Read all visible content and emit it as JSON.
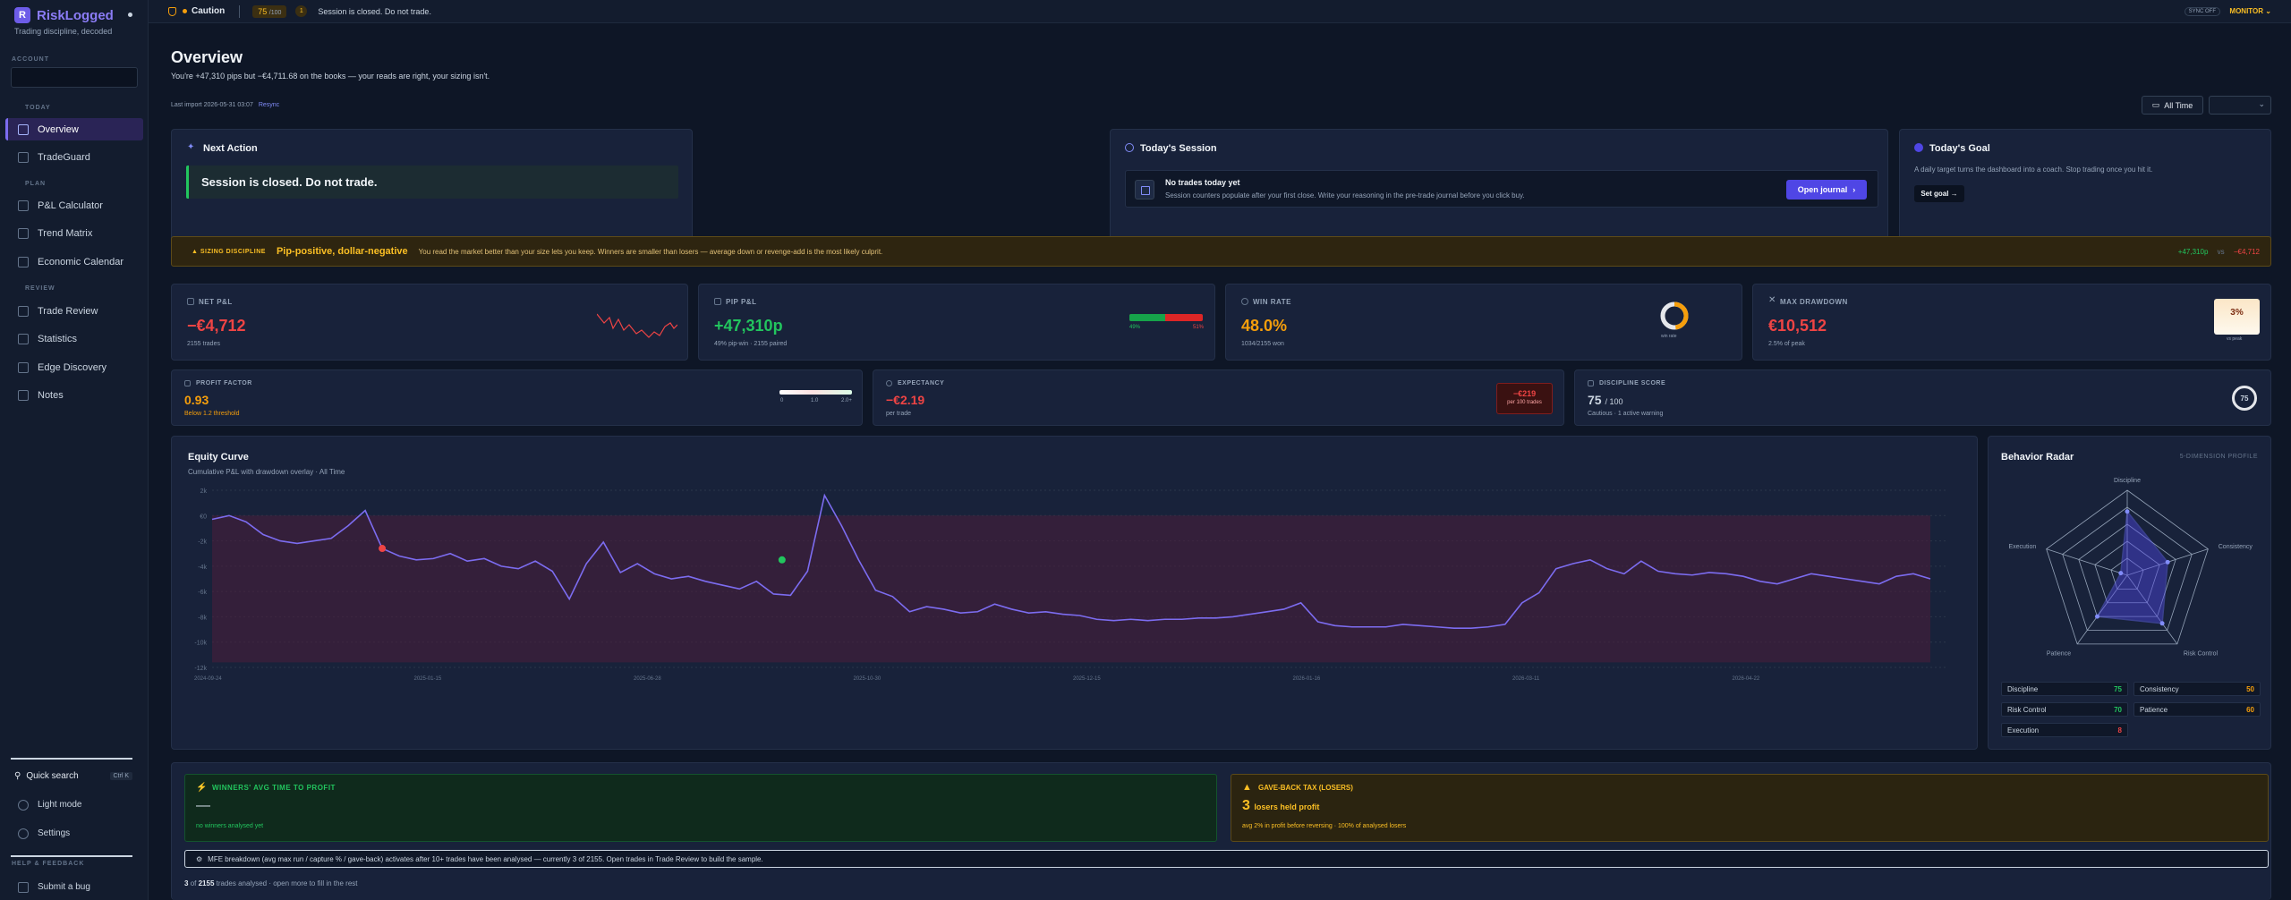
{
  "brand": {
    "name": "RiskLogged",
    "tagline": "Trading discipline, decoded",
    "logo_letter": "R"
  },
  "sidebar": {
    "account_label": "ACCOUNT",
    "sections": {
      "today": "TODAY",
      "plan": "PLAN",
      "review": "REVIEW",
      "help": "HELP & FEEDBACK"
    },
    "items": {
      "overview": "Overview",
      "tradeguard": "TradeGuard",
      "pnl_calc": "P&L Calculator",
      "trend_matrix": "Trend Matrix",
      "econ_cal": "Economic Calendar",
      "trade_review": "Trade Review",
      "statistics": "Statistics",
      "edge_discovery": "Edge Discovery",
      "notes": "Notes"
    },
    "quick_search": "Quick search",
    "quick_search_kbd": "Ctrl K",
    "light_mode": "Light mode",
    "settings": "Settings",
    "submit_bug": "Submit a bug"
  },
  "topbar": {
    "status": "Caution",
    "score": "75",
    "score_max": "/100",
    "warnings": "1",
    "message": "Session is closed. Do not trade.",
    "sync": "SYNC OFF",
    "mode": "MONITOR"
  },
  "overview": {
    "title": "Overview",
    "subtitle": "You're +47,310 pips but −€4,711.68 on the books — your reads are right, your sizing isn't.",
    "last_import": "Last import 2026-05-31 03:07",
    "resync": "Resync",
    "range": "All Time"
  },
  "next_action": {
    "title": "Next Action",
    "text": "Session is closed. Do not trade."
  },
  "session": {
    "title": "Today's Session",
    "headline": "No trades today yet",
    "text": "Session counters populate after your first close. Write your reasoning in the pre-trade journal before you click buy.",
    "button": "Open journal"
  },
  "goal": {
    "title": "Today's Goal",
    "text": "A daily target turns the dashboard into a coach. Stop trading once you hit it.",
    "button": "Set goal →"
  },
  "banner": {
    "tag": "SIZING DISCIPLINE",
    "headline": "Pip-positive, dollar-negative",
    "text": "You read the market better than your size lets you keep. Winners are smaller than losers — average down or revenge-add is the most likely culprit.",
    "pips": "+47,310p",
    "vs": "vs",
    "euros": "−€4,712"
  },
  "kpis": {
    "net_pnl": {
      "label": "NET P&L",
      "value": "−€4,712",
      "sub": "2155 trades"
    },
    "pip_pnl": {
      "label": "PIP P&L",
      "value": "+47,310p",
      "sub": "49% pip-win · 2155 paired",
      "bar_left": "49%",
      "bar_right": "51%",
      "bar_fraction": 0.49
    },
    "win_rate": {
      "label": "WIN RATE",
      "value": "48.0%",
      "sub": "1034/2155 won",
      "ring_label": "win rate",
      "fraction": 0.48
    },
    "max_dd": {
      "label": "MAX DRAWDOWN",
      "value": "€10,512",
      "sub": "2.5% of peak",
      "box": "3%",
      "box_sub": "vs peak"
    }
  },
  "stats": {
    "profit_factor": {
      "label": "PROFIT FACTOR",
      "value": "0.93",
      "sub": "Below 1.2 threshold",
      "scale": [
        "0",
        "1.0",
        "2.0+"
      ]
    },
    "expectancy": {
      "label": "EXPECTANCY",
      "value": "−€2.19",
      "sub": "per trade",
      "box": "−€219",
      "box_sub": "per 100 trades"
    },
    "discipline": {
      "label": "DISCIPLINE SCORE",
      "value": "75",
      "max": "/ 100",
      "sub": "Cautious · 1 active warning",
      "ring": "75"
    }
  },
  "equity": {
    "title": "Equity Curve",
    "subtitle": "Cumulative P&L with drawdown overlay · All Time",
    "y_ticks": [
      "2k",
      "€0",
      "-2k",
      "-4k",
      "-6k",
      "-8k",
      "-10k",
      "-12k"
    ],
    "x_ticks": [
      "2024-09-24",
      "2025-01-15",
      "2025-06-28",
      "2025-10-30",
      "2025-12-15",
      "2026-01-16",
      "2026-03-11",
      "2026-04-22"
    ]
  },
  "radar": {
    "title": "Behavior Radar",
    "profile": "5-DIMENSION PROFILE",
    "axes": [
      "Discipline",
      "Consistency",
      "Risk Control",
      "Patience",
      "Execution"
    ],
    "scores": [
      {
        "name": "Discipline",
        "value": 75,
        "color": "#22c55e"
      },
      {
        "name": "Consistency",
        "value": 50,
        "color": "#f59e0b"
      },
      {
        "name": "Risk Control",
        "value": 70,
        "color": "#22c55e"
      },
      {
        "name": "Patience",
        "value": 60,
        "color": "#f59e0b"
      },
      {
        "name": "Execution",
        "value": 8,
        "color": "#ef4444"
      }
    ]
  },
  "bottom": {
    "winners_title": "WINNERS' AVG TIME TO PROFIT",
    "winners_value": "—",
    "winners_sub": "no winners analysed yet",
    "giveback_title": "GAVE-BACK TAX (LOSERS)",
    "giveback_count": "3",
    "giveback_label": "losers held profit",
    "giveback_sub": "avg 2% in profit before reversing · 100% of analysed losers",
    "mfe_note": "MFE breakdown (avg max run / capture % / gave-back) activates after 10+ trades have been analysed — currently 3 of 2155. Open trades in Trade Review to build the sample.",
    "analysed_a": "3",
    "analysed_b": "2155",
    "analysed_text": "trades analysed · open more to fill in the rest",
    "of": "of"
  }
}
